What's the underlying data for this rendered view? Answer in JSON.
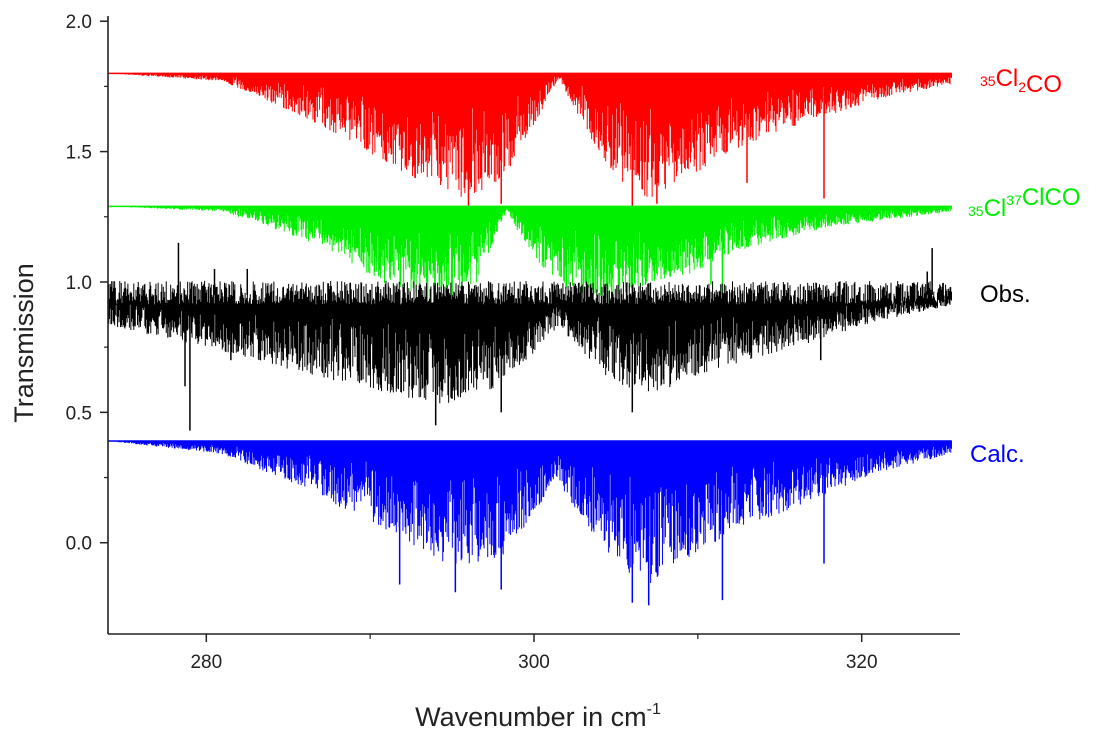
{
  "chart_data": {
    "type": "line",
    "xlabel": "Wavenumber in cm",
    "xlabel_superscript": "-1",
    "ylabel": "Transmission",
    "xlim": [
      274,
      326
    ],
    "ylim": [
      -0.35,
      2.02
    ],
    "x_ticks": [
      280,
      300,
      320
    ],
    "x_tick_labels": [
      "280",
      "300",
      "320"
    ],
    "x_minor_ticks": [
      290,
      310
    ],
    "y_ticks": [
      0.0,
      0.5,
      1.0,
      1.5,
      2.0
    ],
    "y_tick_labels": [
      "0.0",
      "0.5",
      "1.0",
      "1.5",
      "2.0"
    ],
    "grid": false,
    "legend": "labels beside each trace on the right",
    "series": [
      {
        "key": "cl35_2co",
        "label_parts": [
          {
            "text": "35",
            "sup": true
          },
          {
            "text": "Cl",
            "sup": false
          },
          {
            "text": "2",
            "sub": true
          },
          {
            "text": "CO",
            "sup": false
          }
        ],
        "color": "#ff0000",
        "baseline": 1.8,
        "x_range": [
          274,
          325.5
        ],
        "envelope": [
          [
            274,
            0.0
          ],
          [
            281,
            0.03
          ],
          [
            287,
            0.2
          ],
          [
            292,
            0.38
          ],
          [
            295.5,
            0.48
          ],
          [
            298,
            0.42
          ],
          [
            300,
            0.2
          ],
          [
            301.5,
            0.02
          ],
          [
            303,
            0.2
          ],
          [
            305,
            0.4
          ],
          [
            307,
            0.48
          ],
          [
            309.5,
            0.4
          ],
          [
            312,
            0.3
          ],
          [
            315,
            0.22
          ],
          [
            318,
            0.16
          ],
          [
            321,
            0.1
          ],
          [
            325.5,
            0.04
          ]
        ],
        "prominent_lines": [
          [
            296,
            0.52
          ],
          [
            298,
            0.5
          ],
          [
            306,
            0.52
          ],
          [
            307.5,
            0.5
          ],
          [
            317.7,
            0.48
          ],
          [
            313,
            0.42
          ]
        ]
      },
      {
        "key": "cl35cl37co",
        "label_parts": [
          {
            "text": "35",
            "sup": true
          },
          {
            "text": "Cl",
            "sup": false
          },
          {
            "text": "37",
            "sup": true
          },
          {
            "text": "ClCO",
            "sup": false
          }
        ],
        "color": "#00ee00",
        "baseline": 1.29,
        "x_range": [
          274,
          325.5
        ],
        "envelope": [
          [
            274,
            0.0
          ],
          [
            281,
            0.02
          ],
          [
            287,
            0.15
          ],
          [
            291,
            0.3
          ],
          [
            294,
            0.36
          ],
          [
            296.5,
            0.3
          ],
          [
            298.3,
            0.02
          ],
          [
            300,
            0.2
          ],
          [
            302,
            0.32
          ],
          [
            304.5,
            0.36
          ],
          [
            307,
            0.3
          ],
          [
            310,
            0.25
          ],
          [
            313,
            0.16
          ],
          [
            318,
            0.08
          ],
          [
            325.5,
            0.02
          ]
        ],
        "prominent_lines": [
          [
            293.5,
            0.38
          ],
          [
            295,
            0.36
          ],
          [
            304.5,
            0.38
          ],
          [
            306,
            0.4
          ],
          [
            311.5,
            0.38
          ],
          [
            310.8,
            0.3
          ]
        ]
      },
      {
        "key": "observed",
        "label_parts": [
          {
            "text": "Obs.",
            "sup": false
          }
        ],
        "color": "#000000",
        "baseline": 0.95,
        "x_range": [
          274,
          325.5
        ],
        "envelope": [
          [
            274,
            0.12
          ],
          [
            280,
            0.2
          ],
          [
            286,
            0.3
          ],
          [
            291,
            0.38
          ],
          [
            294.5,
            0.42
          ],
          [
            298,
            0.35
          ],
          [
            300,
            0.22
          ],
          [
            301.5,
            0.12
          ],
          [
            303,
            0.22
          ],
          [
            305,
            0.35
          ],
          [
            307,
            0.38
          ],
          [
            310,
            0.32
          ],
          [
            313,
            0.25
          ],
          [
            317,
            0.18
          ],
          [
            321,
            0.1
          ],
          [
            325.5,
            0.04
          ]
        ],
        "prominent_lines": [
          [
            279,
            0.52
          ],
          [
            278.7,
            0.35
          ],
          [
            281.5,
            0.25
          ],
          [
            294,
            0.5
          ],
          [
            298,
            0.45
          ],
          [
            306,
            0.45
          ],
          [
            317.5,
            0.25
          ]
        ],
        "spikes_up": [
          [
            278.3,
            1.15
          ],
          [
            280.5,
            1.05
          ],
          [
            282.5,
            1.05
          ],
          [
            324.3,
            1.13
          ],
          [
            324,
            1.04
          ]
        ]
      },
      {
        "key": "calculated",
        "label_parts": [
          {
            "text": "Calc.",
            "sup": false
          }
        ],
        "color": "#0000ff",
        "baseline": 0.39,
        "x_range": [
          274,
          325.5
        ],
        "envelope": [
          [
            274,
            0.0
          ],
          [
            281,
            0.05
          ],
          [
            286,
            0.18
          ],
          [
            291,
            0.35
          ],
          [
            295,
            0.48
          ],
          [
            298,
            0.45
          ],
          [
            300,
            0.28
          ],
          [
            301.3,
            0.15
          ],
          [
            303,
            0.3
          ],
          [
            305,
            0.48
          ],
          [
            307,
            0.55
          ],
          [
            309.5,
            0.45
          ],
          [
            312,
            0.35
          ],
          [
            315,
            0.28
          ],
          [
            318,
            0.2
          ],
          [
            321,
            0.12
          ],
          [
            325.5,
            0.05
          ]
        ],
        "prominent_lines": [
          [
            291.8,
            0.55
          ],
          [
            295.2,
            0.58
          ],
          [
            298,
            0.57
          ],
          [
            306,
            0.62
          ],
          [
            307,
            0.63
          ],
          [
            311.5,
            0.61
          ],
          [
            317.7,
            0.47
          ]
        ]
      }
    ]
  }
}
